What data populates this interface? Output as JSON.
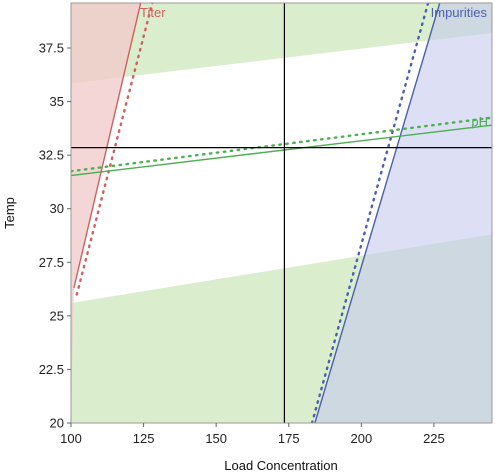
{
  "chart_data": {
    "type": "contour",
    "xlabel": "Load Concentration",
    "ylabel": "Temp",
    "xlim": [
      100,
      245
    ],
    "ylim": [
      20,
      39.6
    ],
    "x_ticks": [
      "100",
      "125",
      "150",
      "175",
      "200",
      "225"
    ],
    "y_ticks": [
      "20",
      "22.5",
      "25",
      "27.5",
      "30",
      "32.5",
      "35",
      "37.5"
    ],
    "crosshair": {
      "x": 173.5,
      "y": 32.85
    },
    "series": [
      {
        "name": "Titer",
        "color": "#d06060",
        "fill": "#f2c8c8",
        "limit_line": [
          [
            101,
            26.3
          ],
          [
            124,
            39.6
          ]
        ],
        "margin_line": [
          [
            102,
            26.0
          ],
          [
            128,
            39.6
          ]
        ],
        "infeasible_side": "left"
      },
      {
        "name": "Impurities",
        "color": "#4a5fb0",
        "fill": "#c7c9ef",
        "limit_line": [
          [
            184,
            20.0
          ],
          [
            227,
            39.6
          ]
        ],
        "margin_line": [
          [
            183,
            20.0
          ],
          [
            223,
            39.6
          ]
        ],
        "infeasible_side": "right"
      },
      {
        "name": "pH",
        "color": "#4caf50",
        "fill": "#d6ecc9",
        "limit_line": [
          [
            100,
            31.55
          ],
          [
            245,
            33.9
          ]
        ],
        "margin_line": [
          [
            100,
            31.75
          ],
          [
            245,
            34.25
          ]
        ],
        "band_upper": [
          [
            100,
            35.85
          ],
          [
            245,
            38.2
          ]
        ],
        "band_lower": [
          [
            100,
            25.6
          ],
          [
            245,
            28.8
          ]
        ],
        "infeasible_side": "outside-band"
      }
    ]
  }
}
